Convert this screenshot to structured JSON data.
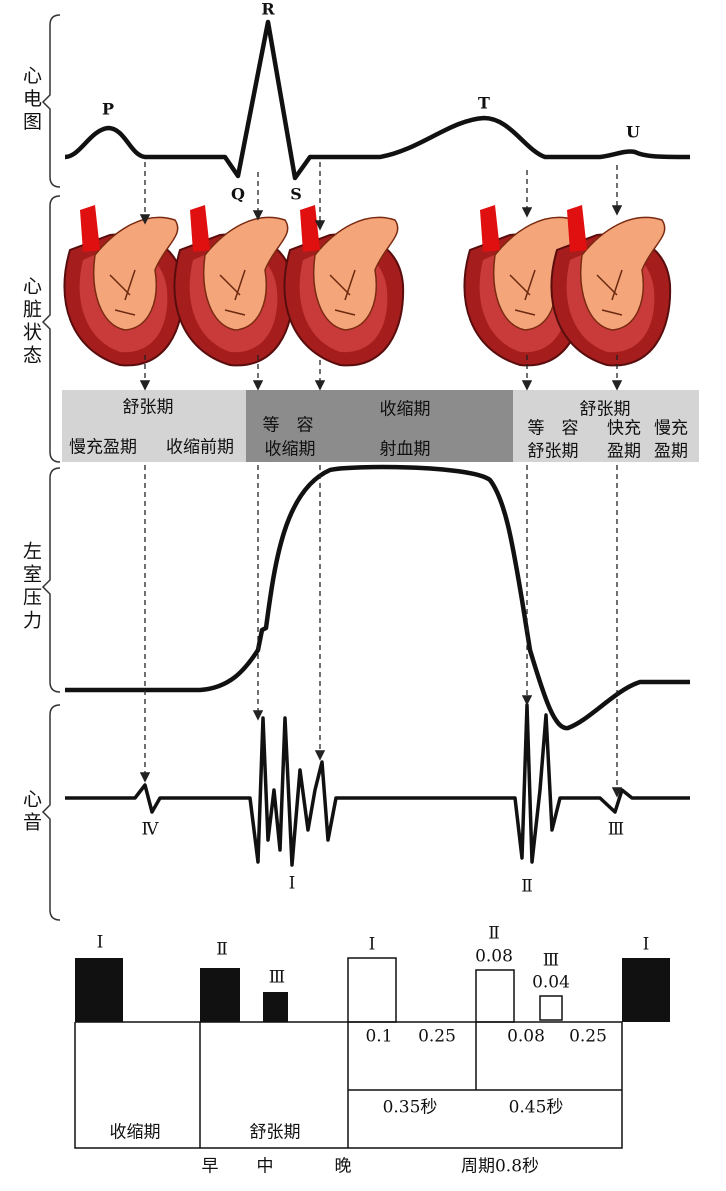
{
  "row_labels": [
    "心电图",
    "心脏状态",
    "左室压力",
    "心音"
  ],
  "ecg_waves": {
    "P": "P",
    "R": "R",
    "Q": "Q",
    "S": "S",
    "T": "T",
    "U": "U"
  },
  "phases": {
    "left": {
      "title": "舒张期",
      "sub": [
        "慢充盈期",
        "收缩前期"
      ]
    },
    "middle": {
      "title": "收缩期",
      "isovolumic": [
        "等　容",
        "收缩期"
      ],
      "ejection": "射血期"
    },
    "right": {
      "title": "舒张期",
      "isovolumic": [
        "等　容",
        "舒张期"
      ],
      "rapid": [
        "快充",
        "盈期"
      ],
      "slow": [
        "慢充",
        "盈期"
      ]
    }
  },
  "heart_sounds": [
    "Ⅳ",
    "Ⅰ",
    "Ⅱ",
    "Ⅲ"
  ],
  "timeline": {
    "left_sounds": [
      "Ⅰ",
      "Ⅱ",
      "Ⅲ"
    ],
    "right_sounds": [
      {
        "label": "Ⅰ"
      },
      {
        "label": "Ⅱ",
        "duration": "0.08"
      },
      {
        "label": "Ⅲ",
        "duration": "0.04"
      },
      {
        "label": "Ⅰ"
      }
    ],
    "intervals": [
      "0.1",
      "0.25",
      "0.08",
      "0.25"
    ],
    "phase_durations": [
      "0.35秒",
      "0.45秒"
    ],
    "phases": [
      "收缩期",
      "舒张期"
    ],
    "diastole_parts": [
      "早",
      "中",
      "晚"
    ],
    "cycle": "周期0.8秒"
  }
}
